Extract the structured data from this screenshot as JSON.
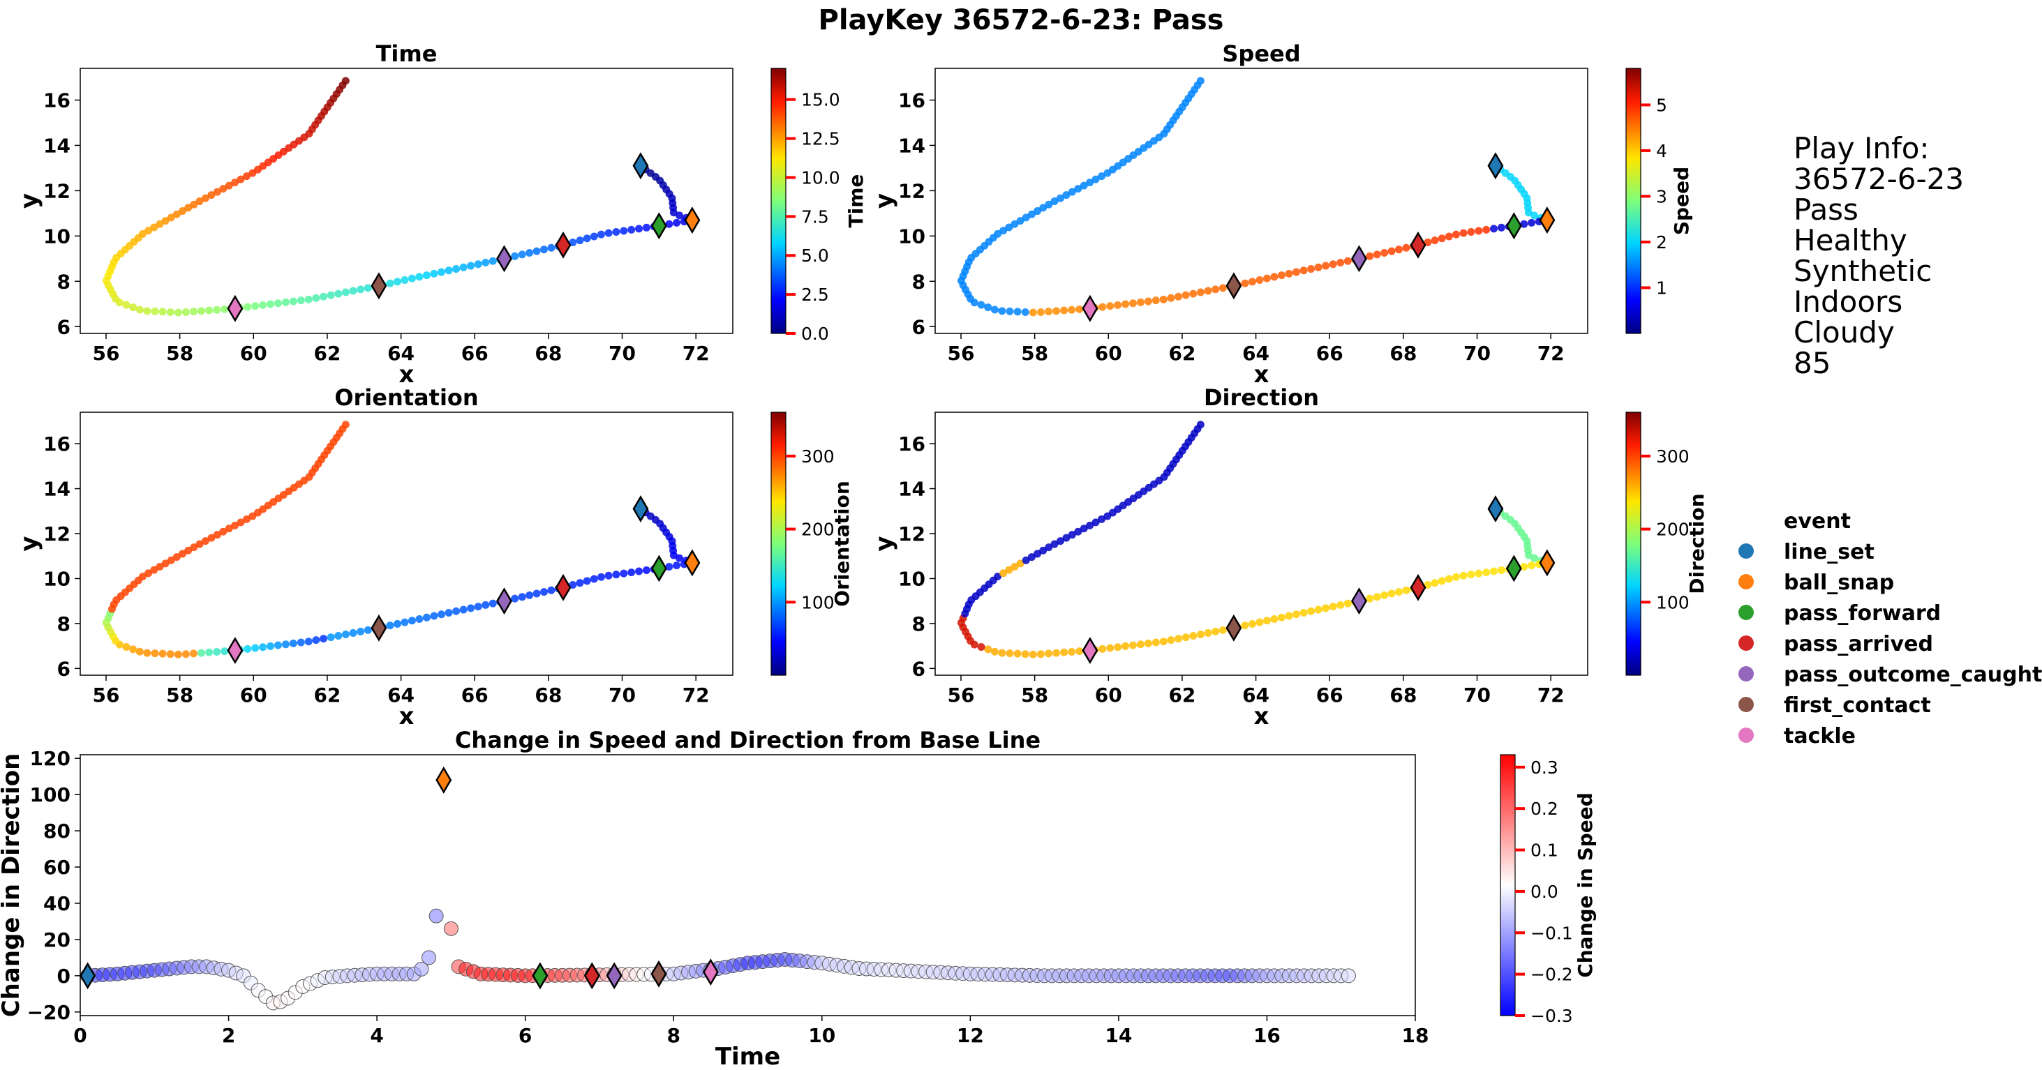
{
  "figure": {
    "title": "PlayKey 36572-6-23: Pass"
  },
  "play_info": {
    "heading": "Play Info:",
    "lines": [
      "36572-6-23",
      "Pass",
      "Healthy",
      "Synthetic",
      "Indoors",
      "Cloudy",
      "85"
    ]
  },
  "legend": {
    "title": "event",
    "items": [
      {
        "label": "line_set",
        "color": "#1f77b4"
      },
      {
        "label": "ball_snap",
        "color": "#ff7f0e"
      },
      {
        "label": "pass_forward",
        "color": "#2ca02c"
      },
      {
        "label": "pass_arrived",
        "color": "#d62728"
      },
      {
        "label": "pass_outcome_caught",
        "color": "#9467bd"
      },
      {
        "label": "first_contact",
        "color": "#8c564b"
      },
      {
        "label": "tackle",
        "color": "#e377c2"
      }
    ]
  },
  "chart_data": [
    {
      "id": "time",
      "type": "scatter",
      "title": "Time",
      "xlabel": "x",
      "ylabel": "y",
      "xlim": [
        55.3,
        73.0
      ],
      "ylim": [
        5.7,
        17.4
      ],
      "xticks": [
        56,
        58,
        60,
        62,
        64,
        66,
        68,
        70,
        72
      ],
      "yticks": [
        6,
        8,
        10,
        12,
        14,
        16
      ],
      "colormap": "jet",
      "colorbar": {
        "label": "Time",
        "range": [
          0,
          17
        ],
        "ticks": [
          0.0,
          2.5,
          5.0,
          7.5,
          10.0,
          12.5,
          15.0
        ],
        "tick_labels": [
          "0.0",
          "2.5",
          "5.0",
          "7.5",
          "10.0",
          "12.5",
          "15.0"
        ]
      }
    },
    {
      "id": "speed",
      "type": "scatter",
      "title": "Speed",
      "xlabel": "x",
      "ylabel": "y",
      "xlim": [
        55.3,
        73.0
      ],
      "ylim": [
        5.7,
        17.4
      ],
      "xticks": [
        56,
        58,
        60,
        62,
        64,
        66,
        68,
        70,
        72
      ],
      "yticks": [
        6,
        8,
        10,
        12,
        14,
        16
      ],
      "colormap": "jet",
      "colorbar": {
        "label": "Speed",
        "range": [
          0,
          5.8
        ],
        "ticks": [
          1,
          2,
          3,
          4,
          5
        ],
        "tick_labels": [
          "1",
          "2",
          "3",
          "4",
          "5"
        ]
      }
    },
    {
      "id": "orientation",
      "type": "scatter",
      "title": "Orientation",
      "xlabel": "x",
      "ylabel": "y",
      "xlim": [
        55.3,
        73.0
      ],
      "ylim": [
        5.7,
        17.4
      ],
      "xticks": [
        56,
        58,
        60,
        62,
        64,
        66,
        68,
        70,
        72
      ],
      "yticks": [
        6,
        8,
        10,
        12,
        14,
        16
      ],
      "colormap": "jet",
      "colorbar": {
        "label": "Orientation",
        "range": [
          0,
          360
        ],
        "ticks": [
          100,
          200,
          300
        ],
        "tick_labels": [
          "100",
          "200",
          "300"
        ]
      }
    },
    {
      "id": "direction",
      "type": "scatter",
      "title": "Direction",
      "xlabel": "x",
      "ylabel": "y",
      "xlim": [
        55.3,
        73.0
      ],
      "ylim": [
        5.7,
        17.4
      ],
      "xticks": [
        56,
        58,
        60,
        62,
        64,
        66,
        68,
        70,
        72
      ],
      "yticks": [
        6,
        8,
        10,
        12,
        14,
        16
      ],
      "colormap": "jet",
      "colorbar": {
        "label": "Direction",
        "range": [
          0,
          360
        ],
        "ticks": [
          100,
          200,
          300
        ],
        "tick_labels": [
          "100",
          "200",
          "300"
        ]
      }
    },
    {
      "id": "change",
      "type": "scatter",
      "title": "Change in Speed and Direction from Base Line",
      "xlabel": "Time",
      "ylabel": "Change in Direction",
      "xlim": [
        0,
        18
      ],
      "ylim": [
        -22,
        122
      ],
      "xticks": [
        0,
        2,
        4,
        6,
        8,
        10,
        12,
        14,
        16,
        18
      ],
      "yticks": [
        -20,
        0,
        20,
        40,
        60,
        80,
        100,
        120
      ],
      "colormap": "bwr",
      "colorbar": {
        "label": "Change in Speed",
        "range": [
          -0.3,
          0.33
        ],
        "ticks": [
          -0.3,
          -0.2,
          -0.1,
          0.0,
          0.1,
          0.2,
          0.3
        ],
        "tick_labels": [
          "−0.3",
          "−0.2",
          "−0.1",
          "0.0",
          "0.1",
          "0.2",
          "0.3"
        ]
      }
    }
  ],
  "trajectory": {
    "path_keypoints": [
      [
        70.5,
        13.1
      ],
      [
        71.0,
        12.5
      ],
      [
        71.35,
        11.7
      ],
      [
        71.4,
        11.0
      ],
      [
        71.9,
        10.7
      ],
      [
        71.0,
        10.45
      ],
      [
        69.5,
        10.1
      ],
      [
        68.4,
        9.6
      ],
      [
        66.8,
        9.0
      ],
      [
        64.5,
        8.2
      ],
      [
        63.4,
        7.8
      ],
      [
        61.5,
        7.2
      ],
      [
        59.5,
        6.8
      ],
      [
        58.0,
        6.62
      ],
      [
        57.0,
        6.7
      ],
      [
        56.3,
        7.1
      ],
      [
        56.0,
        8.0
      ],
      [
        56.25,
        9.0
      ],
      [
        57.0,
        10.1
      ],
      [
        58.5,
        11.5
      ],
      [
        60.0,
        12.8
      ],
      [
        61.5,
        14.5
      ],
      [
        62.5,
        16.85
      ]
    ],
    "time_range": [
      0.1,
      17.0
    ],
    "event_markers": [
      {
        "event": "line_set",
        "x": 70.5,
        "y": 13.1,
        "t": 0.1
      },
      {
        "event": "ball_snap",
        "x": 71.9,
        "y": 10.7,
        "t": 4.9
      },
      {
        "event": "pass_forward",
        "x": 71.0,
        "y": 10.45,
        "t": 6.2
      },
      {
        "event": "pass_arrived",
        "x": 68.4,
        "y": 9.6,
        "t": 6.9
      },
      {
        "event": "pass_outcome_caught",
        "x": 66.8,
        "y": 9.0,
        "t": 7.2
      },
      {
        "event": "first_contact",
        "x": 63.4,
        "y": 7.8,
        "t": 7.8
      },
      {
        "event": "tackle",
        "x": 59.5,
        "y": 6.8,
        "t": 8.5
      }
    ]
  },
  "change_series": {
    "direction_keypoints": [
      [
        0.1,
        0
      ],
      [
        0.5,
        1
      ],
      [
        1.0,
        3
      ],
      [
        1.5,
        5
      ],
      [
        1.7,
        5
      ],
      [
        2.0,
        3
      ],
      [
        2.2,
        0
      ],
      [
        2.4,
        -8
      ],
      [
        2.6,
        -15
      ],
      [
        2.75,
        -14
      ],
      [
        3.0,
        -6
      ],
      [
        3.3,
        -1
      ],
      [
        3.6,
        0
      ],
      [
        4.0,
        1
      ],
      [
        4.5,
        1
      ],
      [
        4.65,
        5
      ],
      [
        4.78,
        18
      ],
      [
        4.9,
        108
      ],
      [
        5.0,
        26
      ],
      [
        5.1,
        5
      ],
      [
        5.4,
        1
      ],
      [
        6.0,
        0
      ],
      [
        8.0,
        1
      ],
      [
        8.6,
        4
      ],
      [
        9.0,
        7
      ],
      [
        9.5,
        9
      ],
      [
        10.0,
        7
      ],
      [
        10.5,
        4
      ],
      [
        11.0,
        3
      ],
      [
        12.0,
        1
      ],
      [
        13.0,
        0
      ],
      [
        17.0,
        0
      ]
    ],
    "speed_change_keypoints": [
      [
        0.1,
        -0.25
      ],
      [
        1.0,
        -0.22
      ],
      [
        1.6,
        -0.12
      ],
      [
        2.0,
        -0.05
      ],
      [
        2.6,
        0.03
      ],
      [
        3.0,
        0.02
      ],
      [
        3.6,
        -0.05
      ],
      [
        4.0,
        -0.08
      ],
      [
        4.6,
        -0.1
      ],
      [
        4.8,
        -0.15
      ],
      [
        5.0,
        0.2
      ],
      [
        5.2,
        0.3
      ],
      [
        6.0,
        0.3
      ],
      [
        6.8,
        0.2
      ],
      [
        7.2,
        0.1
      ],
      [
        7.6,
        0.02
      ],
      [
        8.0,
        -0.05
      ],
      [
        8.5,
        -0.15
      ],
      [
        9.0,
        -0.25
      ],
      [
        9.6,
        -0.2
      ],
      [
        10.0,
        -0.05
      ],
      [
        11.0,
        -0.02
      ],
      [
        14.0,
        -0.12
      ],
      [
        15.5,
        -0.2
      ],
      [
        16.0,
        -0.1
      ],
      [
        17.0,
        -0.03
      ]
    ],
    "event_markers": [
      {
        "event": "line_set",
        "t": 0.1,
        "value": 0
      },
      {
        "event": "ball_snap",
        "t": 4.9,
        "value": 108
      },
      {
        "event": "pass_forward",
        "t": 6.2,
        "value": 0
      },
      {
        "event": "pass_arrived",
        "t": 6.9,
        "value": 0
      },
      {
        "event": "pass_outcome_caught",
        "t": 7.2,
        "value": 0
      },
      {
        "event": "first_contact",
        "t": 7.8,
        "value": 1
      },
      {
        "event": "tackle",
        "t": 8.5,
        "value": 2
      }
    ]
  }
}
